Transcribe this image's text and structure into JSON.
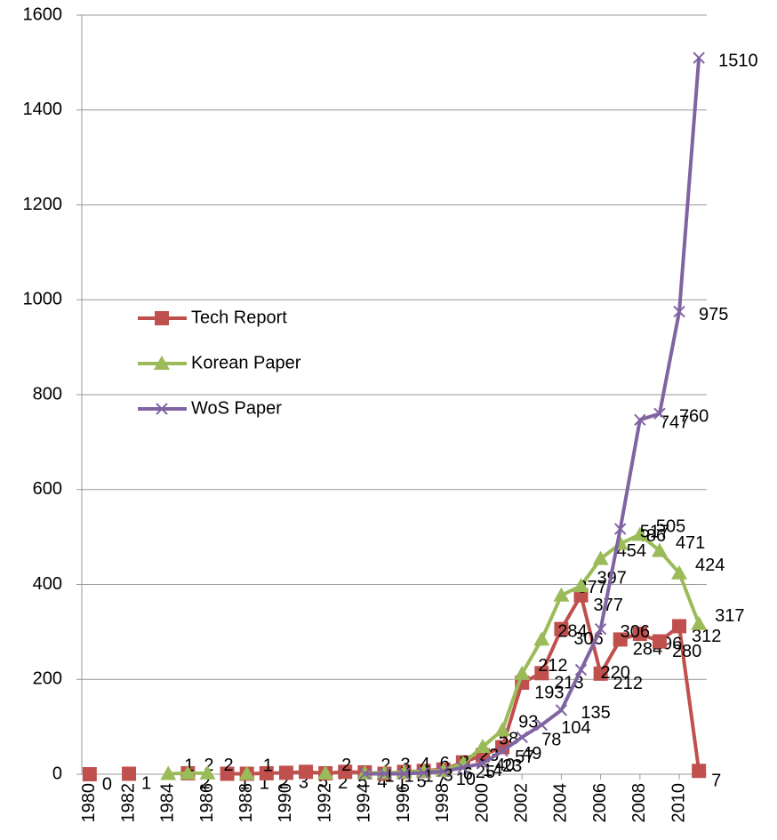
{
  "chart_data": {
    "type": "line",
    "x": [
      1980,
      1981,
      1982,
      1983,
      1984,
      1985,
      1986,
      1987,
      1988,
      1989,
      1990,
      1991,
      1992,
      1993,
      1994,
      1995,
      1996,
      1997,
      1998,
      1999,
      2000,
      2001,
      2002,
      2003,
      2004,
      2005,
      2006,
      2007,
      2008,
      2009,
      2010,
      2011
    ],
    "xlim": [
      1979.6,
      2011.4
    ],
    "xticks": [
      1980,
      1982,
      1984,
      1986,
      1988,
      1990,
      1992,
      1994,
      1996,
      1998,
      2000,
      2002,
      2004,
      2006,
      2008,
      2010
    ],
    "ylim": [
      0,
      1600
    ],
    "yticks": [
      0,
      200,
      400,
      600,
      800,
      1000,
      1200,
      1400,
      1600
    ],
    "grid": true,
    "legend": "left",
    "series": [
      {
        "name": "Tech Report",
        "color": "#c0504d",
        "marker": "square",
        "values": [
          0,
          null,
          1,
          null,
          null,
          2,
          null,
          1,
          1,
          2,
          3,
          5,
          2,
          5,
          4,
          1,
          5,
          7,
          10,
          25,
          40,
          57,
          193,
          213,
          306,
          377,
          212,
          284,
          296,
          280,
          312,
          7
        ]
      },
      {
        "name": "Korean Paper",
        "color": "#9bbb59",
        "marker": "triangle",
        "values": [
          null,
          null,
          null,
          null,
          1,
          2,
          2,
          null,
          1,
          null,
          null,
          null,
          2,
          null,
          2,
          3,
          4,
          6,
          8,
          23,
          58,
          93,
          212,
          284,
          377,
          397,
          454,
          486,
          505,
          471,
          424,
          317
        ]
      },
      {
        "name": "WoS Paper",
        "color": "#8064a2",
        "marker": "x",
        "values": [
          null,
          null,
          null,
          null,
          null,
          null,
          null,
          null,
          null,
          null,
          null,
          null,
          null,
          null,
          1,
          1,
          1,
          3,
          6,
          14,
          23,
          49,
          78,
          104,
          135,
          220,
          306,
          517,
          747,
          760,
          975,
          1510
        ]
      }
    ]
  }
}
